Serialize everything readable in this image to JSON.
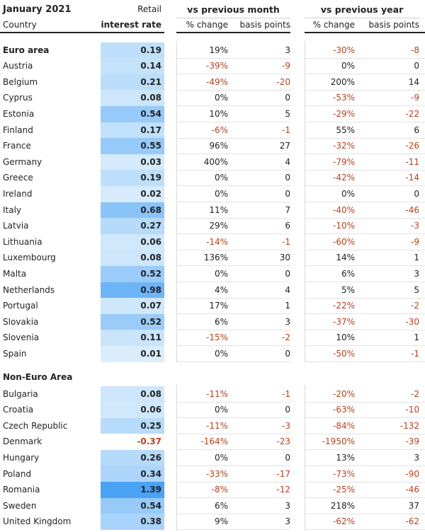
{
  "chart_data": {
    "type": "table",
    "title": "January 2021",
    "columns": {
      "country": "Country",
      "rate_line1": "Retail",
      "rate_line2": "interest rate",
      "group1": "vs previous month",
      "group2": "vs previous year",
      "pct_change": "% change",
      "basis_points": "basis points"
    },
    "colors": {
      "negative": "#b8401c",
      "heat_low": "#dceefc",
      "heat_high": "#4aa2f5",
      "negative_rate_text": "#b8401c"
    },
    "heat_scale": [
      0,
      1.39
    ],
    "sections": [
      {
        "label": "Euro area",
        "rows": [
          {
            "country": "Euro area",
            "rate": "0.19",
            "m_pct": "19%",
            "m_bp": "3",
            "y_pct": "-30%",
            "y_bp": "-8",
            "header": true
          },
          {
            "country": "Austria",
            "rate": "0.14",
            "m_pct": "-39%",
            "m_bp": "-9",
            "y_pct": "0%",
            "y_bp": "0"
          },
          {
            "country": "Belgium",
            "rate": "0.21",
            "m_pct": "-49%",
            "m_bp": "-20",
            "y_pct": "200%",
            "y_bp": "14"
          },
          {
            "country": "Cyprus",
            "rate": "0.08",
            "m_pct": "0%",
            "m_bp": "0",
            "y_pct": "-53%",
            "y_bp": "-9"
          },
          {
            "country": "Estonia",
            "rate": "0.54",
            "m_pct": "10%",
            "m_bp": "5",
            "y_pct": "-29%",
            "y_bp": "-22"
          },
          {
            "country": "Finland",
            "rate": "0.17",
            "m_pct": "-6%",
            "m_bp": "-1",
            "y_pct": "55%",
            "y_bp": "6"
          },
          {
            "country": "France",
            "rate": "0.55",
            "m_pct": "96%",
            "m_bp": "27",
            "y_pct": "-32%",
            "y_bp": "-26"
          },
          {
            "country": "Germany",
            "rate": "0.03",
            "m_pct": "400%",
            "m_bp": "4",
            "y_pct": "-79%",
            "y_bp": "-11"
          },
          {
            "country": "Greece",
            "rate": "0.19",
            "m_pct": "0%",
            "m_bp": "0",
            "y_pct": "-42%",
            "y_bp": "-14"
          },
          {
            "country": "Ireland",
            "rate": "0.02",
            "m_pct": "0%",
            "m_bp": "0",
            "y_pct": "0%",
            "y_bp": "0"
          },
          {
            "country": "Italy",
            "rate": "0.68",
            "m_pct": "11%",
            "m_bp": "7",
            "y_pct": "-40%",
            "y_bp": "-46"
          },
          {
            "country": "Latvia",
            "rate": "0.27",
            "m_pct": "29%",
            "m_bp": "6",
            "y_pct": "-10%",
            "y_bp": "-3"
          },
          {
            "country": "Lithuania",
            "rate": "0.06",
            "m_pct": "-14%",
            "m_bp": "-1",
            "y_pct": "-60%",
            "y_bp": "-9"
          },
          {
            "country": "Luxembourg",
            "rate": "0.08",
            "m_pct": "136%",
            "m_bp": "30",
            "y_pct": "14%",
            "y_bp": "1"
          },
          {
            "country": "Malta",
            "rate": "0.52",
            "m_pct": "0%",
            "m_bp": "0",
            "y_pct": "6%",
            "y_bp": "3"
          },
          {
            "country": "Netherlands",
            "rate": "0.98",
            "m_pct": "4%",
            "m_bp": "4",
            "y_pct": "5%",
            "y_bp": "5"
          },
          {
            "country": "Portugal",
            "rate": "0.07",
            "m_pct": "17%",
            "m_bp": "1",
            "y_pct": "-22%",
            "y_bp": "-2"
          },
          {
            "country": "Slovakia",
            "rate": "0.52",
            "m_pct": "6%",
            "m_bp": "3",
            "y_pct": "-37%",
            "y_bp": "-30"
          },
          {
            "country": "Slovenia",
            "rate": "0.11",
            "m_pct": "-15%",
            "m_bp": "-2",
            "y_pct": "10%",
            "y_bp": "1"
          },
          {
            "country": "Spain",
            "rate": "0.01",
            "m_pct": "0%",
            "m_bp": "0",
            "y_pct": "-50%",
            "y_bp": "-1"
          }
        ]
      },
      {
        "label": "Non-Euro Area",
        "rows": [
          {
            "country": "Bulgaria",
            "rate": "0.08",
            "m_pct": "-11%",
            "m_bp": "-1",
            "y_pct": "-20%",
            "y_bp": "-2"
          },
          {
            "country": "Croatia",
            "rate": "0.06",
            "m_pct": "0%",
            "m_bp": "0",
            "y_pct": "-63%",
            "y_bp": "-10"
          },
          {
            "country": "Czech Republic",
            "rate": "0.25",
            "m_pct": "-11%",
            "m_bp": "-3",
            "y_pct": "-84%",
            "y_bp": "-132"
          },
          {
            "country": "Denmark",
            "rate": "-0.37",
            "m_pct": "-164%",
            "m_bp": "-23",
            "y_pct": "-1950%",
            "y_bp": "-39"
          },
          {
            "country": "Hungary",
            "rate": "0.26",
            "m_pct": "0%",
            "m_bp": "0",
            "y_pct": "13%",
            "y_bp": "3"
          },
          {
            "country": "Poland",
            "rate": "0.34",
            "m_pct": "-33%",
            "m_bp": "-17",
            "y_pct": "-73%",
            "y_bp": "-90"
          },
          {
            "country": "Romania",
            "rate": "1.39",
            "m_pct": "-8%",
            "m_bp": "-12",
            "y_pct": "-25%",
            "y_bp": "-46"
          },
          {
            "country": "Sweden",
            "rate": "0.54",
            "m_pct": "6%",
            "m_bp": "3",
            "y_pct": "218%",
            "y_bp": "37"
          },
          {
            "country": "United Kingdom",
            "rate": "0.38",
            "m_pct": "9%",
            "m_bp": "3",
            "y_pct": "-62%",
            "y_bp": "-62"
          }
        ]
      }
    ]
  }
}
